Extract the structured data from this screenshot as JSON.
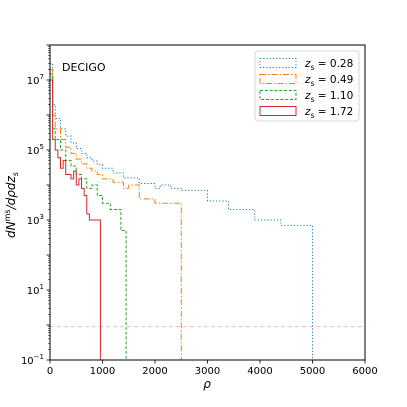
{
  "chart_data": {
    "type": "line",
    "annotation": "DECIGO",
    "xlabel": "ρ",
    "ylabel": "dN^ms/dρdz_s",
    "xlim": [
      0,
      6000
    ],
    "ylim": [
      0.1,
      100000000.0
    ],
    "yscale": "log",
    "xticks": [
      0,
      1000,
      2000,
      3000,
      4000,
      5000,
      6000
    ],
    "yticks": [
      {
        "value": 0.1,
        "base": "10",
        "exp": "−1"
      },
      {
        "value": 10,
        "base": "10",
        "exp": "1"
      },
      {
        "value": 1000,
        "base": "10",
        "exp": "3"
      },
      {
        "value": 100000,
        "base": "10",
        "exp": "5"
      },
      {
        "value": 10000000,
        "base": "10",
        "exp": "7"
      }
    ],
    "threshold": {
      "y": 0.9,
      "color": "#ffb6c1"
    },
    "legend_position": "top-right",
    "series": [
      {
        "name": "z_s = 0.28",
        "z": "0.28",
        "color": "#1f77b4",
        "dash": "1.2,2",
        "steps": [
          [
            0,
            30000000.0
          ],
          [
            50,
            2000000.0
          ],
          [
            100,
            800000.0
          ],
          [
            200,
            400000.0
          ],
          [
            300,
            250000.0
          ],
          [
            400,
            160000.0
          ],
          [
            500,
            110000.0
          ],
          [
            600,
            80000.0
          ],
          [
            700,
            60000.0
          ],
          [
            800,
            48000.0
          ],
          [
            900,
            38000.0
          ],
          [
            1000,
            30000.0
          ],
          [
            1200,
            22000.0
          ],
          [
            1400,
            16000.0
          ],
          [
            1700,
            11000.0
          ],
          [
            2000,
            8000
          ],
          [
            2100,
            10000.0
          ],
          [
            2300,
            8000
          ],
          [
            2500,
            7000
          ],
          [
            3000,
            3500
          ],
          [
            3400,
            2000
          ],
          [
            3900,
            1000
          ],
          [
            4400,
            700
          ],
          [
            5000,
            700
          ]
        ]
      },
      {
        "name": "z_s = 0.49",
        "z": "0.49",
        "color": "#ff7f0e",
        "dash": "6,2,1.5,2",
        "steps": [
          [
            0,
            20000000.0
          ],
          [
            50,
            1000000.0
          ],
          [
            100,
            400000.0
          ],
          [
            200,
            200000.0
          ],
          [
            300,
            120000.0
          ],
          [
            400,
            80000.0
          ],
          [
            500,
            55000.0
          ],
          [
            600,
            40000.0
          ],
          [
            700,
            30000.0
          ],
          [
            800,
            25000.0
          ],
          [
            900,
            20000.0
          ],
          [
            1000,
            15000.0
          ],
          [
            1200,
            12000.0
          ],
          [
            1400,
            8000
          ],
          [
            1500,
            10000.0
          ],
          [
            1700,
            4000
          ],
          [
            2000,
            3000
          ],
          [
            2500,
            3000
          ]
        ]
      },
      {
        "name": "z_s = 1.10",
        "z": "1.10",
        "color": "#2ca02c",
        "dash": "3,1.8",
        "steps": [
          [
            0,
            15000000.0
          ],
          [
            50,
            400000.0
          ],
          [
            100,
            200000.0
          ],
          [
            200,
            100000.0
          ],
          [
            300,
            50000.0
          ],
          [
            400,
            35000.0
          ],
          [
            500,
            20000.0
          ],
          [
            600,
            15000.0
          ],
          [
            700,
            8000
          ],
          [
            800,
            10000.0
          ],
          [
            900,
            5000
          ],
          [
            1000,
            3000
          ],
          [
            1150,
            2000
          ],
          [
            1350,
            500
          ],
          [
            1450,
            500
          ]
        ]
      },
      {
        "name": "z_s = 1.72",
        "z": "1.72",
        "color": "#d62728",
        "dash": "",
        "steps": [
          [
            0,
            10000000.0
          ],
          [
            50,
            200000.0
          ],
          [
            100,
            100000.0
          ],
          [
            150,
            60000.0
          ],
          [
            200,
            30000.0
          ],
          [
            250,
            50000.0
          ],
          [
            300,
            20000.0
          ],
          [
            400,
            15000.0
          ],
          [
            450,
            25000.0
          ],
          [
            500,
            10000.0
          ],
          [
            550,
            15000.0
          ],
          [
            600,
            8000
          ],
          [
            650,
            5000
          ],
          [
            700,
            1500
          ],
          [
            750,
            1000
          ],
          [
            800,
            1000
          ],
          [
            960,
            1000
          ]
        ]
      }
    ]
  }
}
